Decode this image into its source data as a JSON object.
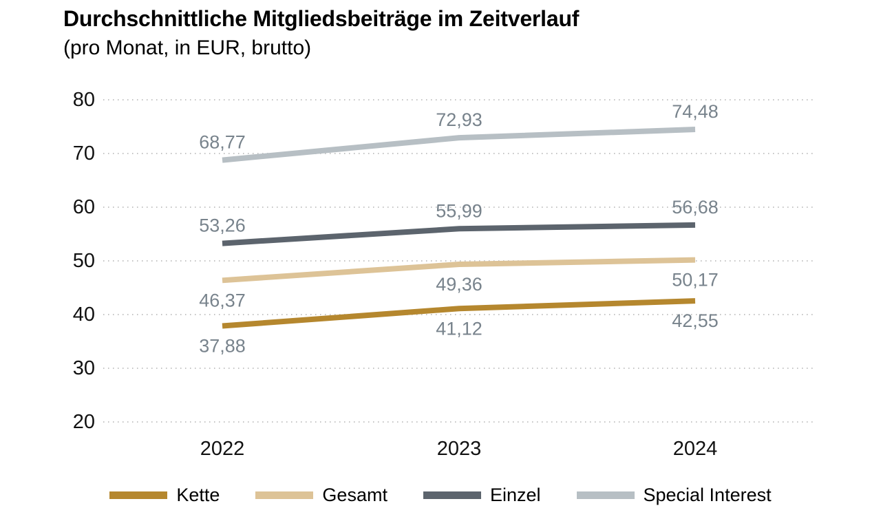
{
  "title": "Durchschnittliche Mitgliedsbeiträge im Zeitverlauf",
  "subtitle": "(pro Monat, in EUR, brutto)",
  "chart_data": {
    "type": "line",
    "x": [
      "2022",
      "2023",
      "2024"
    ],
    "yticks": [
      "80",
      "70",
      "60",
      "50",
      "40",
      "30",
      "20"
    ],
    "ylim": [
      20,
      80
    ],
    "grid": "horizontal-dotted",
    "legend_position": "bottom",
    "label_color": "#78838c",
    "series": [
      {
        "name": "Kette",
        "color": "#b5872e",
        "values": [
          37.88,
          41.12,
          42.55
        ],
        "labels": [
          "37,88",
          "41,12",
          "42,55"
        ],
        "label_pos": "below"
      },
      {
        "name": "Gesamt",
        "color": "#ddc397",
        "values": [
          46.37,
          49.36,
          50.17
        ],
        "labels": [
          "46,37",
          "49,36",
          "50,17"
        ],
        "label_pos": "below"
      },
      {
        "name": "Einzel",
        "color": "#5c646d",
        "values": [
          53.26,
          55.99,
          56.68
        ],
        "labels": [
          "53,26",
          "55,99",
          "56,68"
        ],
        "label_pos": "above"
      },
      {
        "name": "Special Interest",
        "color": "#b7bfc4",
        "values": [
          68.77,
          72.93,
          74.48
        ],
        "labels": [
          "68,77",
          "72,93",
          "74,48"
        ],
        "label_pos": "above"
      }
    ]
  }
}
